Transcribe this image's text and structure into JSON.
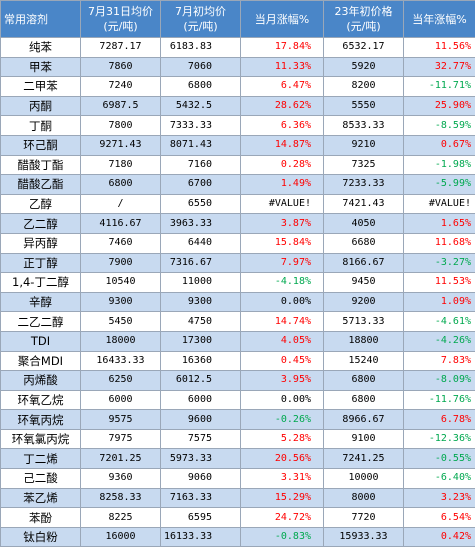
{
  "colors": {
    "header_bg": "#4a86c8",
    "header_text": "#ffffff",
    "stripe": "#c8daf0",
    "up": "#ff0000",
    "down": "#00a84f",
    "neutral": "#000000"
  },
  "header": {
    "name": "常用溶剂",
    "jul31_line1": "7月31日均价",
    "jul31_line2": "(元/吨)",
    "jul1_line1": "7月初均价",
    "jul1_line2": "(元/吨)",
    "month_change": "当月涨幅%",
    "y23_line1": "23年初价格",
    "y23_line2": "(元/吨)",
    "year_change": "当年涨幅%"
  },
  "rows": [
    {
      "name": "纯苯",
      "jul31": "7287.17",
      "jul1": "6183.83",
      "mchg": "17.84%",
      "mdir": "up",
      "y23": "6532.17",
      "ychg": "11.56%",
      "ydir": "up"
    },
    {
      "name": "甲苯",
      "jul31": "7860",
      "jul1": "7060",
      "mchg": "11.33%",
      "mdir": "up",
      "y23": "5920",
      "ychg": "32.77%",
      "ydir": "up"
    },
    {
      "name": "二甲苯",
      "jul31": "7240",
      "jul1": "6800",
      "mchg": "6.47%",
      "mdir": "up",
      "y23": "8200",
      "ychg": "-11.71%",
      "ydir": "down"
    },
    {
      "name": "丙酮",
      "jul31": "6987.5",
      "jul1": "5432.5",
      "mchg": "28.62%",
      "mdir": "up",
      "y23": "5550",
      "ychg": "25.90%",
      "ydir": "up"
    },
    {
      "name": "丁酮",
      "jul31": "7800",
      "jul1": "7333.33",
      "mchg": "6.36%",
      "mdir": "up",
      "y23": "8533.33",
      "ychg": "-8.59%",
      "ydir": "down"
    },
    {
      "name": "环己酮",
      "jul31": "9271.43",
      "jul1": "8071.43",
      "mchg": "14.87%",
      "mdir": "up",
      "y23": "9210",
      "ychg": "0.67%",
      "ydir": "up"
    },
    {
      "name": "醋酸丁酯",
      "jul31": "7180",
      "jul1": "7160",
      "mchg": "0.28%",
      "mdir": "up",
      "y23": "7325",
      "ychg": "-1.98%",
      "ydir": "down"
    },
    {
      "name": "醋酸乙酯",
      "jul31": "6800",
      "jul1": "6700",
      "mchg": "1.49%",
      "mdir": "up",
      "y23": "7233.33",
      "ychg": "-5.99%",
      "ydir": "down"
    },
    {
      "name": "乙醇",
      "jul31": "/",
      "jul1": "6550",
      "mchg": "#VALUE!",
      "mdir": "neutral",
      "y23": "7421.43",
      "ychg": "#VALUE!",
      "ydir": "neutral"
    },
    {
      "name": "乙二醇",
      "jul31": "4116.67",
      "jul1": "3963.33",
      "mchg": "3.87%",
      "mdir": "up",
      "y23": "4050",
      "ychg": "1.65%",
      "ydir": "up"
    },
    {
      "name": "异丙醇",
      "jul31": "7460",
      "jul1": "6440",
      "mchg": "15.84%",
      "mdir": "up",
      "y23": "6680",
      "ychg": "11.68%",
      "ydir": "up"
    },
    {
      "name": "正丁醇",
      "jul31": "7900",
      "jul1": "7316.67",
      "mchg": "7.97%",
      "mdir": "up",
      "y23": "8166.67",
      "ychg": "-3.27%",
      "ydir": "down"
    },
    {
      "name": "1,4-丁二醇",
      "jul31": "10540",
      "jul1": "11000",
      "mchg": "-4.18%",
      "mdir": "down",
      "y23": "9450",
      "ychg": "11.53%",
      "ydir": "up"
    },
    {
      "name": "辛醇",
      "jul31": "9300",
      "jul1": "9300",
      "mchg": "0.00%",
      "mdir": "neutral",
      "y23": "9200",
      "ychg": "1.09%",
      "ydir": "up"
    },
    {
      "name": "二乙二醇",
      "jul31": "5450",
      "jul1": "4750",
      "mchg": "14.74%",
      "mdir": "up",
      "y23": "5713.33",
      "ychg": "-4.61%",
      "ydir": "down"
    },
    {
      "name": "TDI",
      "jul31": "18000",
      "jul1": "17300",
      "mchg": "4.05%",
      "mdir": "up",
      "y23": "18800",
      "ychg": "-4.26%",
      "ydir": "down"
    },
    {
      "name": "聚合MDI",
      "jul31": "16433.33",
      "jul1": "16360",
      "mchg": "0.45%",
      "mdir": "up",
      "y23": "15240",
      "ychg": "7.83%",
      "ydir": "up"
    },
    {
      "name": "丙烯酸",
      "jul31": "6250",
      "jul1": "6012.5",
      "mchg": "3.95%",
      "mdir": "up",
      "y23": "6800",
      "ychg": "-8.09%",
      "ydir": "down"
    },
    {
      "name": "环氧乙烷",
      "jul31": "6000",
      "jul1": "6000",
      "mchg": "0.00%",
      "mdir": "neutral",
      "y23": "6800",
      "ychg": "-11.76%",
      "ydir": "down"
    },
    {
      "name": "环氧丙烷",
      "jul31": "9575",
      "jul1": "9600",
      "mchg": "-0.26%",
      "mdir": "down",
      "y23": "8966.67",
      "ychg": "6.78%",
      "ydir": "up"
    },
    {
      "name": "环氧氯丙烷",
      "jul31": "7975",
      "jul1": "7575",
      "mchg": "5.28%",
      "mdir": "up",
      "y23": "9100",
      "ychg": "-12.36%",
      "ydir": "down"
    },
    {
      "name": "丁二烯",
      "jul31": "7201.25",
      "jul1": "5973.33",
      "mchg": "20.56%",
      "mdir": "up",
      "y23": "7241.25",
      "ychg": "-0.55%",
      "ydir": "down"
    },
    {
      "name": "己二酸",
      "jul31": "9360",
      "jul1": "9060",
      "mchg": "3.31%",
      "mdir": "up",
      "y23": "10000",
      "ychg": "-6.40%",
      "ydir": "down"
    },
    {
      "name": "苯乙烯",
      "jul31": "8258.33",
      "jul1": "7163.33",
      "mchg": "15.29%",
      "mdir": "up",
      "y23": "8000",
      "ychg": "3.23%",
      "ydir": "up"
    },
    {
      "name": "苯酚",
      "jul31": "8225",
      "jul1": "6595",
      "mchg": "24.72%",
      "mdir": "up",
      "y23": "7720",
      "ychg": "6.54%",
      "ydir": "up"
    },
    {
      "name": "钛白粉",
      "jul31": "16000",
      "jul1": "16133.33",
      "mchg": "-0.83%",
      "mdir": "down",
      "y23": "15933.33",
      "ychg": "0.42%",
      "ydir": "up"
    }
  ]
}
